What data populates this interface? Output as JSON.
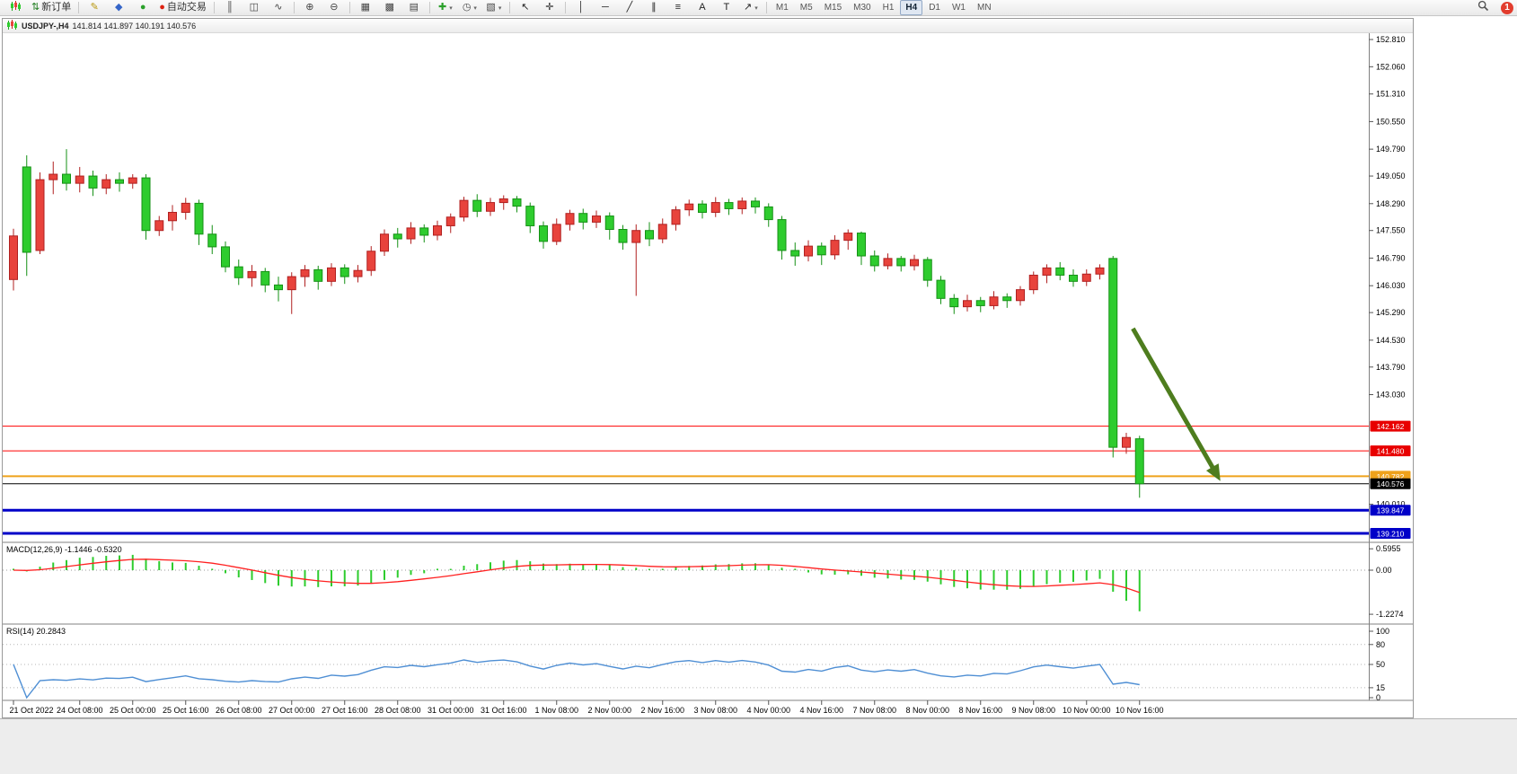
{
  "toolbar": {
    "new_order_label": "新订单",
    "autotrading_label": "自动交易",
    "notification_count": "1",
    "timeframes": [
      "M1",
      "M5",
      "M15",
      "M30",
      "H1",
      "H4",
      "D1",
      "W1",
      "MN"
    ],
    "active_timeframe": "H4",
    "items": [
      {
        "type": "btn",
        "name": "new-chart-button",
        "icon": "mini-candles"
      },
      {
        "type": "btn",
        "name": "new-order-button",
        "icon": "order-arrows",
        "label": "新订单"
      },
      {
        "type": "sep"
      },
      {
        "type": "btn",
        "name": "metaeditor-button",
        "icon": "pencil"
      },
      {
        "type": "btn",
        "name": "community-button",
        "icon": "diamond-blue"
      },
      {
        "type": "btn",
        "name": "market-button",
        "icon": "dot-green"
      },
      {
        "type": "btn",
        "name": "autotrading-button",
        "icon": "dot-red",
        "label": "自动交易"
      },
      {
        "type": "sep"
      },
      {
        "type": "btn",
        "name": "chart-bars-button",
        "icon": "bars"
      },
      {
        "type": "btn",
        "name": "chart-candles-button",
        "icon": "candles"
      },
      {
        "type": "btn",
        "name": "chart-line-button",
        "icon": "line"
      },
      {
        "type": "sep"
      },
      {
        "type": "btn",
        "name": "zoom-in-button",
        "icon": "zoom-in"
      },
      {
        "type": "btn",
        "name": "zoom-out-button",
        "icon": "zoom-out"
      },
      {
        "type": "sep"
      },
      {
        "type": "btn",
        "name": "tile-windows-button",
        "icon": "tile"
      },
      {
        "type": "btn",
        "name": "cascade-windows-button",
        "icon": "cascade"
      },
      {
        "type": "btn",
        "name": "arrange-windows-button",
        "icon": "arrange"
      },
      {
        "type": "sep"
      },
      {
        "type": "btn",
        "name": "add-indicator-button",
        "icon": "plus-green",
        "caret": true
      },
      {
        "type": "btn",
        "name": "periodicity-button",
        "icon": "clock",
        "caret": true
      },
      {
        "type": "btn",
        "name": "templates-button",
        "icon": "template",
        "caret": true
      },
      {
        "type": "sep"
      },
      {
        "type": "btn",
        "name": "cursor-button",
        "icon": "cursor"
      },
      {
        "type": "btn",
        "name": "crosshair-button",
        "icon": "crosshair"
      },
      {
        "type": "sep"
      },
      {
        "type": "btn",
        "name": "vertical-line-button",
        "icon": "vline"
      },
      {
        "type": "btn",
        "name": "horizontal-line-button",
        "icon": "hline"
      },
      {
        "type": "btn",
        "name": "trendline-button",
        "icon": "tline"
      },
      {
        "type": "btn",
        "name": "channel-button",
        "icon": "channel"
      },
      {
        "type": "btn",
        "name": "fibonacci-button",
        "icon": "fibo"
      },
      {
        "type": "btn",
        "name": "text-button",
        "icon": "textA"
      },
      {
        "type": "btn",
        "name": "label-button",
        "icon": "textT"
      },
      {
        "type": "btn",
        "name": "arrows-button",
        "icon": "arrow-ne",
        "caret": true
      },
      {
        "type": "sep"
      },
      {
        "type": "timeframes"
      },
      {
        "type": "spacer"
      },
      {
        "type": "btn",
        "name": "search-button",
        "icon": "magnifier"
      },
      {
        "type": "badge",
        "name": "notifications-badge",
        "label": "1"
      }
    ]
  },
  "chart": {
    "title": "USDJPY-,H4",
    "ohlc_display": "141.814 141.897 140.191 140.576"
  },
  "chart_data": {
    "type": "candlestick",
    "symbol": "USDJPY-",
    "timeframe": "H4",
    "current_ohlc": {
      "open": 141.814,
      "high": 141.897,
      "low": 140.191,
      "close": 140.576
    },
    "colors": {
      "up": "#e8433c",
      "up_border": "#b02020",
      "down": "#2ecc2e",
      "down_border": "#159015",
      "macd_hist": "#2ecc2e",
      "macd_signal": "#ff2020",
      "rsi_line": "#4f8fd4"
    },
    "candles": [
      [
        146.2,
        147.6,
        145.9,
        147.4
      ],
      [
        149.3,
        149.62,
        146.3,
        146.95
      ],
      [
        147.0,
        149.15,
        146.9,
        148.95
      ],
      [
        148.95,
        149.45,
        148.55,
        149.1
      ],
      [
        149.1,
        149.79,
        148.65,
        148.85
      ],
      [
        148.85,
        149.3,
        148.6,
        149.05
      ],
      [
        149.05,
        149.2,
        148.5,
        148.72
      ],
      [
        148.72,
        149.1,
        148.55,
        148.95
      ],
      [
        148.95,
        149.15,
        148.62,
        148.85
      ],
      [
        148.85,
        149.1,
        148.7,
        149.0
      ],
      [
        149.0,
        149.1,
        147.3,
        147.55
      ],
      [
        147.55,
        147.95,
        147.4,
        147.82
      ],
      [
        147.82,
        148.25,
        147.55,
        148.05
      ],
      [
        148.05,
        148.45,
        147.85,
        148.3
      ],
      [
        148.3,
        148.4,
        147.15,
        147.45
      ],
      [
        147.45,
        147.7,
        146.9,
        147.1
      ],
      [
        147.1,
        147.25,
        146.4,
        146.55
      ],
      [
        146.55,
        146.75,
        146.05,
        146.25
      ],
      [
        146.25,
        146.6,
        146.0,
        146.42
      ],
      [
        146.42,
        146.52,
        145.85,
        146.05
      ],
      [
        146.05,
        146.28,
        145.6,
        145.92
      ],
      [
        145.92,
        146.4,
        145.25,
        146.28
      ],
      [
        146.28,
        146.6,
        146.0,
        146.47
      ],
      [
        146.47,
        146.58,
        145.92,
        146.15
      ],
      [
        146.15,
        146.65,
        146.02,
        146.52
      ],
      [
        146.52,
        146.62,
        146.08,
        146.28
      ],
      [
        146.28,
        146.6,
        146.12,
        146.45
      ],
      [
        146.45,
        147.12,
        146.3,
        146.98
      ],
      [
        146.98,
        147.58,
        146.85,
        147.45
      ],
      [
        147.45,
        147.62,
        147.08,
        147.32
      ],
      [
        147.32,
        147.78,
        147.18,
        147.62
      ],
      [
        147.62,
        147.72,
        147.22,
        147.42
      ],
      [
        147.42,
        147.82,
        147.28,
        147.68
      ],
      [
        147.68,
        148.02,
        147.48,
        147.92
      ],
      [
        147.92,
        148.48,
        147.8,
        148.38
      ],
      [
        148.38,
        148.55,
        147.92,
        148.08
      ],
      [
        148.08,
        148.45,
        147.95,
        148.32
      ],
      [
        148.32,
        148.52,
        148.12,
        148.42
      ],
      [
        148.42,
        148.5,
        148.05,
        148.22
      ],
      [
        148.22,
        148.32,
        147.48,
        147.68
      ],
      [
        147.68,
        147.8,
        147.05,
        147.25
      ],
      [
        147.25,
        147.88,
        147.15,
        147.72
      ],
      [
        147.72,
        148.12,
        147.55,
        148.02
      ],
      [
        148.02,
        148.15,
        147.58,
        147.78
      ],
      [
        147.78,
        148.1,
        147.62,
        147.95
      ],
      [
        147.95,
        148.05,
        147.3,
        147.58
      ],
      [
        147.58,
        147.7,
        147.02,
        147.22
      ],
      [
        147.22,
        147.72,
        145.75,
        147.55
      ],
      [
        147.55,
        147.78,
        147.12,
        147.32
      ],
      [
        147.32,
        147.88,
        147.2,
        147.72
      ],
      [
        147.72,
        148.22,
        147.55,
        148.12
      ],
      [
        148.12,
        148.4,
        147.95,
        148.28
      ],
      [
        148.28,
        148.38,
        147.88,
        148.05
      ],
      [
        148.05,
        148.47,
        147.92,
        148.32
      ],
      [
        148.32,
        148.42,
        147.98,
        148.15
      ],
      [
        148.15,
        148.46,
        148.0,
        148.36
      ],
      [
        148.36,
        148.46,
        148.02,
        148.2
      ],
      [
        148.2,
        148.3,
        147.65,
        147.85
      ],
      [
        147.85,
        147.95,
        146.75,
        147.0
      ],
      [
        147.0,
        147.22,
        146.58,
        146.85
      ],
      [
        146.85,
        147.28,
        146.7,
        147.12
      ],
      [
        147.12,
        147.22,
        146.6,
        146.88
      ],
      [
        146.88,
        147.42,
        146.75,
        147.28
      ],
      [
        147.28,
        147.58,
        147.02,
        147.48
      ],
      [
        147.48,
        147.52,
        146.6,
        146.85
      ],
      [
        146.85,
        147.0,
        146.42,
        146.58
      ],
      [
        146.58,
        146.92,
        146.48,
        146.78
      ],
      [
        146.78,
        146.85,
        146.42,
        146.58
      ],
      [
        146.58,
        146.88,
        146.45,
        146.75
      ],
      [
        146.75,
        146.82,
        146.0,
        146.18
      ],
      [
        146.18,
        146.3,
        145.52,
        145.68
      ],
      [
        145.68,
        145.8,
        145.25,
        145.45
      ],
      [
        145.45,
        145.78,
        145.32,
        145.62
      ],
      [
        145.62,
        145.72,
        145.3,
        145.48
      ],
      [
        145.48,
        145.88,
        145.38,
        145.72
      ],
      [
        145.72,
        145.82,
        145.42,
        145.62
      ],
      [
        145.62,
        146.02,
        145.48,
        145.92
      ],
      [
        145.92,
        146.42,
        145.8,
        146.32
      ],
      [
        146.32,
        146.62,
        146.1,
        146.52
      ],
      [
        146.52,
        146.68,
        146.18,
        146.32
      ],
      [
        146.32,
        146.48,
        146.0,
        146.15
      ],
      [
        146.15,
        146.48,
        146.02,
        146.35
      ],
      [
        146.35,
        146.62,
        146.2,
        146.52
      ],
      [
        146.78,
        146.85,
        141.3,
        141.58
      ],
      [
        141.58,
        141.98,
        141.4,
        141.85
      ],
      [
        141.814,
        141.897,
        140.191,
        140.576
      ]
    ],
    "y_axis_labels": [
      "152.810",
      "152.060",
      "151.310",
      "150.550",
      "149.790",
      "149.050",
      "148.290",
      "147.550",
      "146.790",
      "146.030",
      "145.290",
      "144.530",
      "143.790",
      "143.030",
      "140.010"
    ],
    "price_lines": [
      {
        "label": "142.162",
        "price": 142.162,
        "color": "#ff0000",
        "width": 1,
        "badge": "#e80000"
      },
      {
        "label": "141.480",
        "price": 141.48,
        "color": "#ff0000",
        "width": 1,
        "badge": "#e80000"
      },
      {
        "label": "140.782",
        "price": 140.782,
        "color": "#efa21b",
        "width": 2,
        "badge": "#efa21b"
      },
      {
        "label": "140.576",
        "price": 140.576,
        "color": "#000000",
        "width": 1,
        "badge": "#000000"
      },
      {
        "label": "139.847",
        "price": 139.847,
        "color": "#0000c8",
        "width": 3,
        "badge": "#0000c8"
      },
      {
        "label": "139.210",
        "price": 139.21,
        "color": "#0000c8",
        "width": 3,
        "badge": "#0000c8"
      }
    ],
    "x_labels": [
      {
        "label": "21 Oct 2022",
        "bar": 0
      },
      {
        "label": "24 Oct 08:00",
        "bar": 5
      },
      {
        "label": "25 Oct 00:00",
        "bar": 9
      },
      {
        "label": "25 Oct 16:00",
        "bar": 13
      },
      {
        "label": "26 Oct 08:00",
        "bar": 17
      },
      {
        "label": "27 Oct 00:00",
        "bar": 21
      },
      {
        "label": "27 Oct 16:00",
        "bar": 25
      },
      {
        "label": "28 Oct 08:00",
        "bar": 29
      },
      {
        "label": "31 Oct 00:00",
        "bar": 33
      },
      {
        "label": "31 Oct 16:00",
        "bar": 37
      },
      {
        "label": "1 Nov 08:00",
        "bar": 41
      },
      {
        "label": "2 Nov 00:00",
        "bar": 45
      },
      {
        "label": "2 Nov 16:00",
        "bar": 49
      },
      {
        "label": "3 Nov 08:00",
        "bar": 53
      },
      {
        "label": "4 Nov 00:00",
        "bar": 57
      },
      {
        "label": "4 Nov 16:00",
        "bar": 61
      },
      {
        "label": "7 Nov 08:00",
        "bar": 65
      },
      {
        "label": "8 Nov 00:00",
        "bar": 69
      },
      {
        "label": "8 Nov 16:00",
        "bar": 73
      },
      {
        "label": "9 Nov 08:00",
        "bar": 77
      },
      {
        "label": "10 Nov 00:00",
        "bar": 81
      },
      {
        "label": "10 Nov 16:00",
        "bar": 85
      }
    ],
    "indicators": [
      {
        "name": "MACD",
        "label": "MACD(12,26,9) -1.1446 -0.5320",
        "params": [
          12,
          26,
          9
        ],
        "values": [
          -1.1446,
          -0.532
        ],
        "scale_labels": [
          "0.5955",
          "0.00",
          "-1.2274"
        ]
      },
      {
        "name": "RSI",
        "label": "RSI(14) 20.2843",
        "period": 14,
        "value": 20.2843,
        "scale_labels": [
          "100",
          "80",
          "50",
          "15",
          "0"
        ],
        "levels": [
          80,
          50,
          15
        ]
      }
    ],
    "arrow": {
      "from_bar": 84.5,
      "from_price": 144.85,
      "to_bar": 90.9,
      "to_price": 140.78,
      "color": "#4e7d1e"
    }
  }
}
